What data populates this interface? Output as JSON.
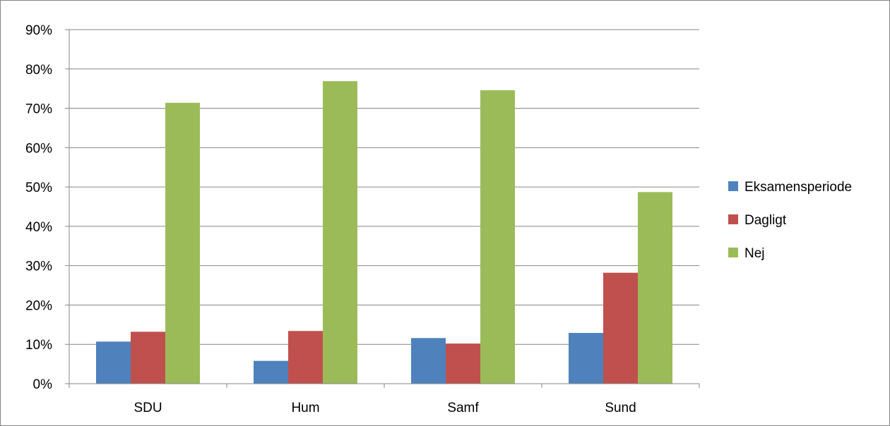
{
  "chart_data": {
    "type": "bar",
    "categories": [
      "SDU",
      "Hum",
      "Samf",
      "Sund"
    ],
    "series": [
      {
        "name": "Eksamensperiode",
        "color": "#4F81BD",
        "values": [
          10.7,
          5.8,
          11.6,
          12.9
        ]
      },
      {
        "name": "Dagligt",
        "color": "#C0504D",
        "values": [
          13.2,
          13.4,
          10.2,
          28.2
        ]
      },
      {
        "name": "Nej",
        "color": "#9BBB59",
        "values": [
          71.4,
          76.9,
          74.6,
          48.7
        ]
      }
    ],
    "ylim": [
      0,
      90
    ],
    "ytick_values": [
      0,
      10,
      20,
      30,
      40,
      50,
      60,
      70,
      80,
      90
    ],
    "ytick_labels": [
      "0%",
      "10%",
      "20%",
      "30%",
      "40%",
      "50%",
      "60%",
      "70%",
      "80%",
      "90%"
    ],
    "grid": "horizontal",
    "legend_position": "right",
    "gridline_color": "#868686"
  }
}
